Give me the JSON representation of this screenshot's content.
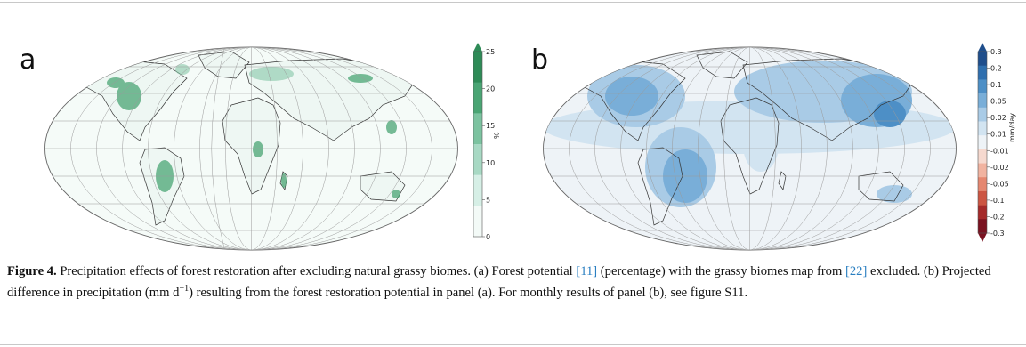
{
  "panel_a": {
    "letter": "a",
    "colorbar": {
      "ticks": [
        "25",
        "20",
        "15",
        "10",
        "5",
        "0"
      ],
      "unit": "%",
      "colors": [
        "#2e8b57",
        "#4aa574",
        "#7cc3a0",
        "#a8d9c4",
        "#d6efe6",
        "#f3faf7"
      ]
    }
  },
  "panel_b": {
    "letter": "b",
    "colorbar": {
      "ticks": [
        "0.3",
        "0.2",
        "0.1",
        "0.05",
        "0.02",
        "0.01",
        "-0.01",
        "-0.02",
        "-0.05",
        "-0.1",
        "-0.2",
        "-0.3"
      ],
      "unit": "mm/day",
      "colors": [
        "#1f4e8c",
        "#2f6fae",
        "#4d8fc6",
        "#79aed8",
        "#a9cbe6",
        "#d2e4f1",
        "#eef3f7",
        "#f6d9cf",
        "#f1b3a0",
        "#e58770",
        "#cc5542",
        "#a52a2a",
        "#7a1220"
      ]
    }
  },
  "caption": {
    "label": "Figure 4.",
    "text_1": " Precipitation effects of forest restoration after excluding natural grassy biomes. (a) Forest potential ",
    "ref_1": "[11]",
    "text_2": " (percentage) with the grassy biomes map from ",
    "ref_2": "[22]",
    "text_3": " excluded. (b) Projected difference in precipitation (mm d",
    "sup": "−1",
    "text_4": ") resulting from the forest restoration potential in panel (a). For monthly results of panel (b), see figure S11."
  }
}
